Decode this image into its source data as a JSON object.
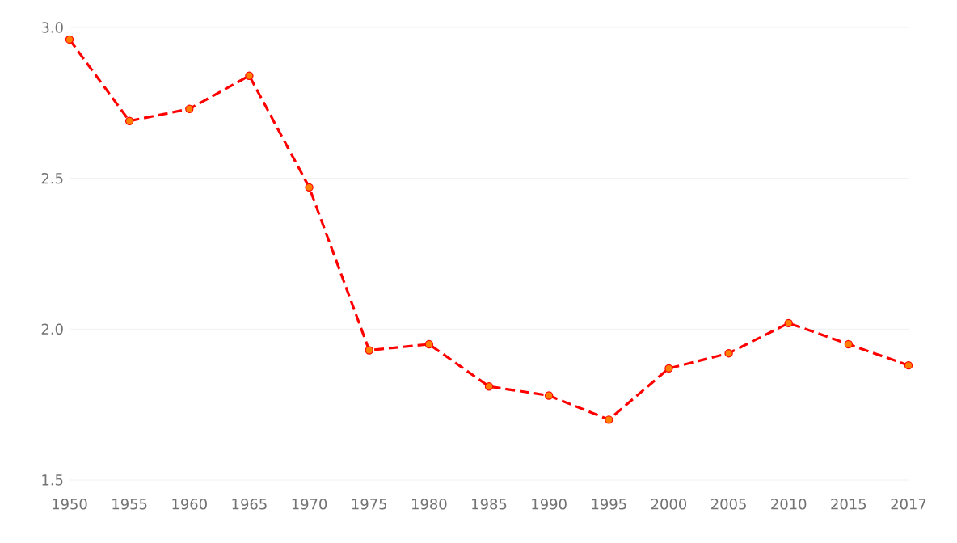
{
  "chart_data": {
    "type": "line",
    "categories": [
      "1950",
      "1955",
      "1960",
      "1965",
      "1970",
      "1975",
      "1980",
      "1985",
      "1990",
      "1995",
      "2000",
      "2005",
      "2010",
      "2015",
      "2017"
    ],
    "series": [
      {
        "color": "#ff0000",
        "values": [
          2.96,
          2.69,
          2.73,
          2.84,
          2.47,
          1.93,
          1.95,
          1.81,
          1.78,
          1.7,
          1.87,
          1.92,
          2.02,
          1.95,
          1.88
        ]
      }
    ],
    "ylim": [
      1.5,
      3.0
    ],
    "yticks": [
      {
        "value": 1.5,
        "label": "1.5"
      },
      {
        "value": 2.0,
        "label": "2.0"
      },
      {
        "value": 2.5,
        "label": "2.5"
      },
      {
        "value": 3.0,
        "label": "3.0"
      }
    ],
    "grid": "y",
    "marker": "circle",
    "line_style": "dashed"
  }
}
